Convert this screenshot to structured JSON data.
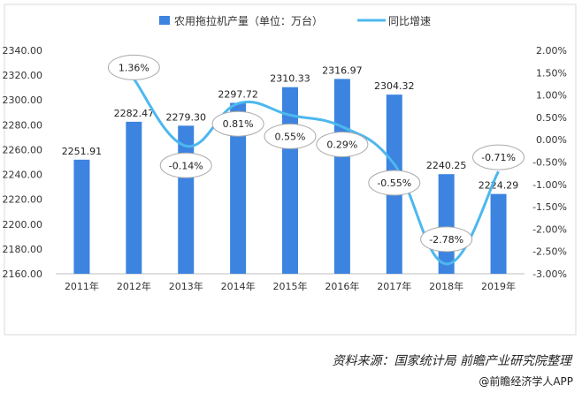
{
  "chart_data": {
    "type": "bar+line",
    "categories": [
      "2011年",
      "2012年",
      "2013年",
      "2014年",
      "2015年",
      "2016年",
      "2017年",
      "2018年",
      "2019年"
    ],
    "series": [
      {
        "name": "农用拖拉机产量（单位：万台）",
        "type": "bar",
        "axis": "left",
        "color": "#3c84e0",
        "values": [
          2251.91,
          2282.47,
          2279.3,
          2297.72,
          2310.33,
          2316.97,
          2304.32,
          2240.25,
          2224.29
        ],
        "labels": [
          "2251.91",
          "2282.47",
          "2279.30",
          "2297.72",
          "2310.33",
          "2316.97",
          "2304.32",
          "2240.25",
          "2224.29"
        ]
      },
      {
        "name": "同比增速",
        "type": "line",
        "axis": "right",
        "color": "#4db8ee",
        "values": [
          null,
          1.36,
          -0.14,
          0.81,
          0.55,
          0.29,
          -0.55,
          -2.78,
          -0.71
        ],
        "labels": [
          null,
          "1.36%",
          "-0.14%",
          "0.81%",
          "0.55%",
          "0.29%",
          "-0.55%",
          "-2.78%",
          "-0.71%"
        ]
      }
    ],
    "ylim_left": [
      2160,
      2340
    ],
    "yticks_left": [
      "2160.00",
      "2180.00",
      "2200.00",
      "2220.00",
      "2240.00",
      "2260.00",
      "2280.00",
      "2300.00",
      "2320.00",
      "2340.00"
    ],
    "ylim_right": [
      -3.0,
      2.0
    ],
    "yticks_right": [
      "-3.00%",
      "-2.50%",
      "-2.00%",
      "-1.50%",
      "-1.00%",
      "-0.50%",
      "0.00%",
      "0.50%",
      "1.00%",
      "1.50%",
      "2.00%"
    ],
    "legend_position": "top",
    "grid": false
  },
  "source": "资料来源：国家统计局  前瞻产业研究院整理",
  "credit": "@前瞻经济学人APP"
}
